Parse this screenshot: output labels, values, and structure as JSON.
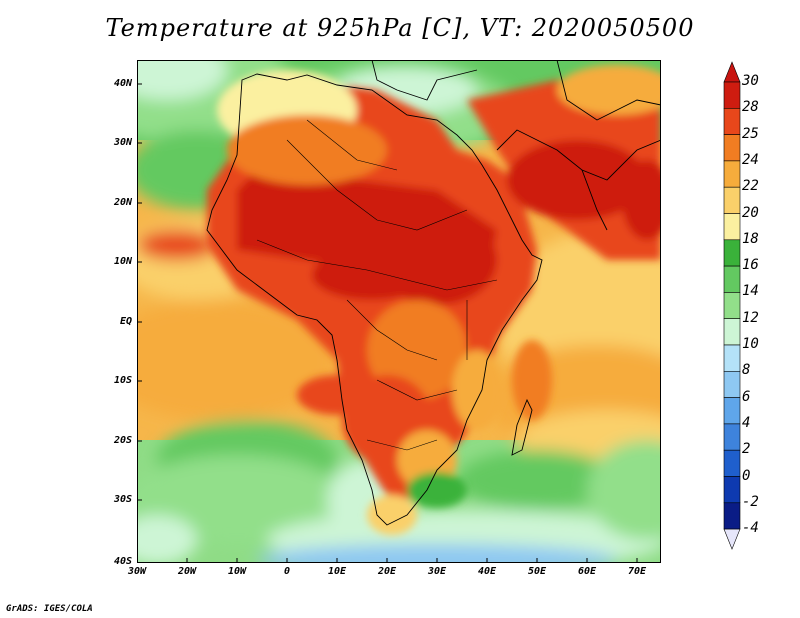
{
  "title": "Temperature at 925hPa [C], VT: 2020050500",
  "credit": "GrADS: IGES/COLA",
  "map": {
    "region": "Africa and surrounding oceans",
    "lon_range": [
      -30,
      75
    ],
    "lat_range": [
      -40,
      45
    ],
    "lat_labels": [
      "40N",
      "30N",
      "20N",
      "10N",
      "EQ",
      "10S",
      "20S",
      "30S",
      "40S"
    ],
    "lon_labels": [
      "30W",
      "20W",
      "10W",
      "0",
      "10E",
      "20E",
      "30E",
      "40E",
      "50E",
      "60E",
      "70E"
    ]
  },
  "colorbar": {
    "labels": [
      "30",
      "28",
      "25",
      "24",
      "22",
      "20",
      "18",
      "16",
      "14",
      "12",
      "10",
      "8",
      "6",
      "4",
      "2",
      "0",
      "-2",
      "-4"
    ],
    "colors": [
      "#ce1c10",
      "#e8471b",
      "#f17d22",
      "#f6ac3c",
      "#fad06a",
      "#fbf0a0",
      "#3ab23a",
      "#63c961",
      "#92df8a",
      "#cdf5d5",
      "#b4e2f8",
      "#8ec8f2",
      "#5fa6ea",
      "#3e83dc",
      "#1f5fcd",
      "#0e3ab0",
      "#0a1c86",
      "#e6e6fa"
    ],
    "top_color": "#c81410",
    "bottom_color": "#e6e6fa"
  }
}
